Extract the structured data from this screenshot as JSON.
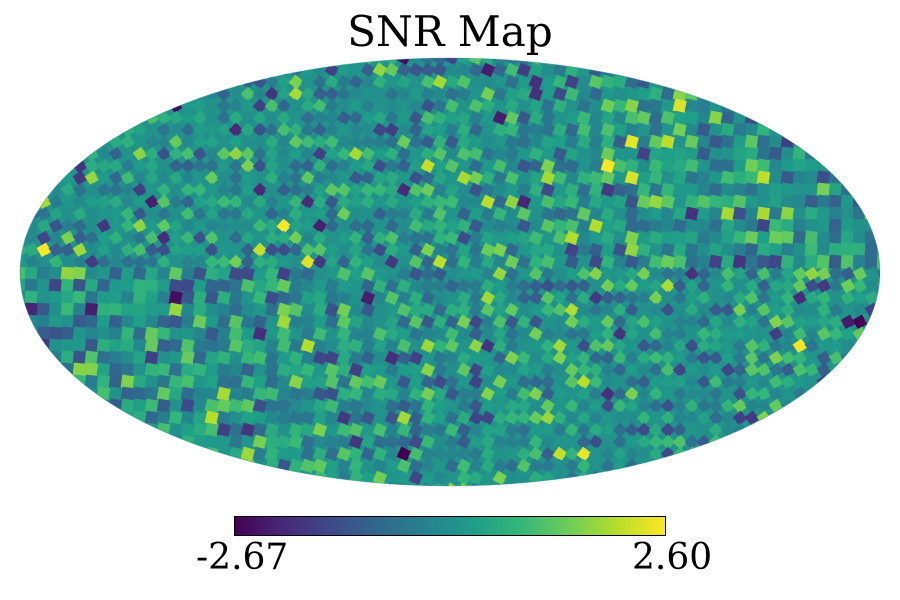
{
  "chart_data": {
    "type": "heatmap",
    "title": "SNR Map",
    "projection": "mollweide",
    "colormap": "viridis",
    "colormap_stops": [
      "#440154",
      "#482878",
      "#3e4989",
      "#31688e",
      "#26828e",
      "#1f9e89",
      "#35b779",
      "#6ece58",
      "#b5de2b",
      "#fde725"
    ],
    "colorbar": {
      "min": -2.67,
      "max": 2.6,
      "min_label": "-2.67",
      "max_label": "2.60",
      "orientation": "horizontal"
    },
    "pixel_values": "noise-like random field, mean approximately 0, range -2.67 to 2.60"
  }
}
